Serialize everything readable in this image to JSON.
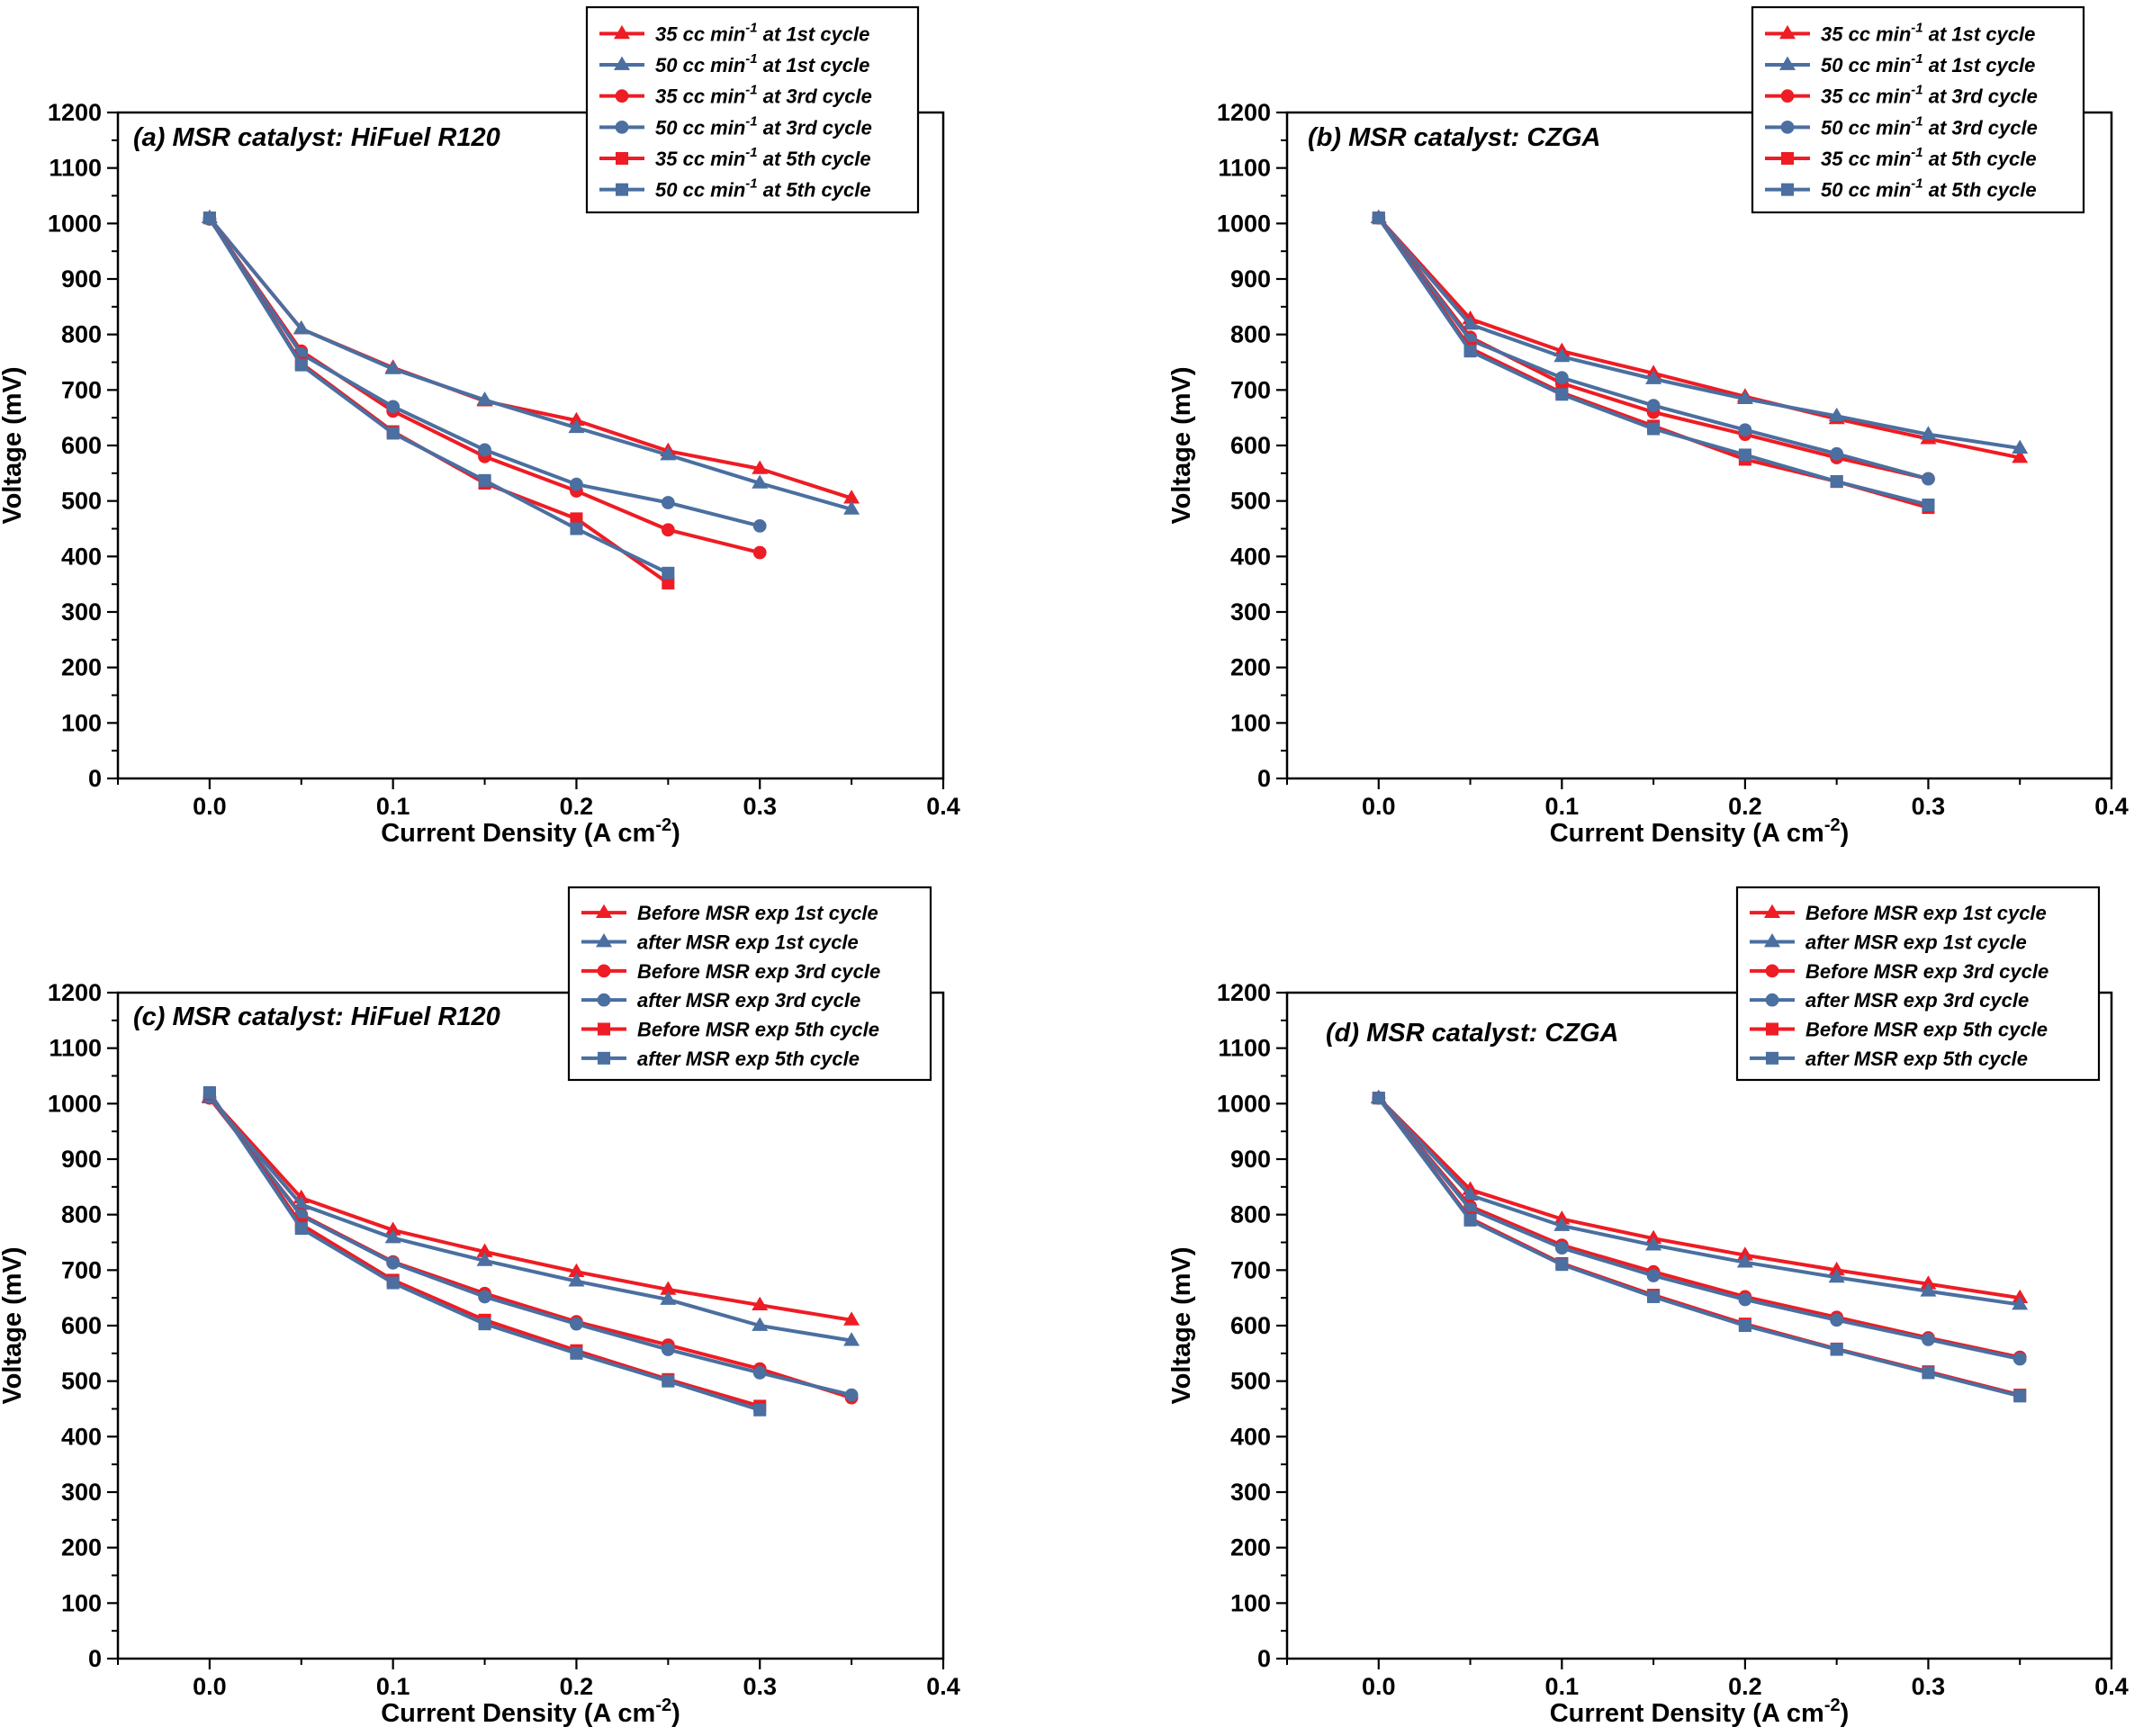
{
  "figure": {
    "colors": {
      "red": "#EE1C24",
      "blue": "#4A6FA0",
      "axis": "#000000"
    }
  },
  "chart_data": [
    {
      "id": "a",
      "type": "line",
      "title": "(a)  MSR catalyst: HiFuel R120",
      "xlabel": "Current Density (A cm",
      "xlabel_sup": "-2",
      "xlabel_end": ")",
      "ylabel": "Voltage (mV)",
      "xlim": [
        -0.05,
        0.4
      ],
      "ylim": [
        0,
        1200
      ],
      "xticks": [
        0.0,
        0.1,
        0.2,
        0.3,
        0.4
      ],
      "xtick_labels": [
        "0.0",
        "0.1",
        "0.2",
        "0.3",
        "0.4"
      ],
      "yticks": [
        0,
        100,
        200,
        300,
        400,
        500,
        600,
        700,
        800,
        900,
        1000,
        1100,
        1200
      ],
      "ytick_labels": [
        "0",
        "100",
        "200",
        "300",
        "400",
        "500",
        "600",
        "700",
        "800",
        "900",
        "1000",
        "1100",
        "1200"
      ],
      "legend_position": "top-right",
      "series": [
        {
          "name": "35 cc min-1 at 1st cycle",
          "legend_pre": "35 cc min",
          "legend_sup": "-1",
          "legend_post": " at 1st cycle",
          "color": "#EE1C24",
          "marker": "triangle",
          "x": [
            0,
            0.05,
            0.1,
            0.15,
            0.2,
            0.25,
            0.3,
            0.35
          ],
          "y": [
            1010,
            810,
            740,
            680,
            645,
            590,
            558,
            505
          ]
        },
        {
          "name": "50 cc min-1 at 1st cycle",
          "legend_pre": "50 cc min",
          "legend_sup": "-1",
          "legend_post": " at 1st cycle",
          "color": "#4A6FA0",
          "marker": "triangle",
          "x": [
            0,
            0.05,
            0.1,
            0.15,
            0.2,
            0.25,
            0.3,
            0.35
          ],
          "y": [
            1010,
            810,
            738,
            682,
            632,
            583,
            532,
            485
          ]
        },
        {
          "name": "35 cc min-1 at 3rd cycle",
          "legend_pre": "35 cc min",
          "legend_sup": "-1",
          "legend_post": " at 3rd cycle",
          "color": "#EE1C24",
          "marker": "circle",
          "x": [
            0,
            0.05,
            0.1,
            0.15,
            0.2,
            0.25,
            0.3
          ],
          "y": [
            1008,
            770,
            662,
            580,
            518,
            448,
            407
          ]
        },
        {
          "name": "50 cc min-1 at 3rd cycle",
          "legend_pre": "50 cc min",
          "legend_sup": "-1",
          "legend_post": " at 3rd cycle",
          "color": "#4A6FA0",
          "marker": "circle",
          "x": [
            0,
            0.05,
            0.1,
            0.15,
            0.2,
            0.25,
            0.3
          ],
          "y": [
            1008,
            765,
            670,
            592,
            530,
            497,
            455
          ]
        },
        {
          "name": "35 cc min-1 at 5th cycle",
          "legend_pre": "35 cc min",
          "legend_sup": "-1",
          "legend_post": " at 5th cycle",
          "color": "#EE1C24",
          "marker": "square",
          "x": [
            0,
            0.05,
            0.1,
            0.15,
            0.2,
            0.25
          ],
          "y": [
            1010,
            748,
            625,
            532,
            468,
            352
          ]
        },
        {
          "name": "50 cc min-1 at 5th cycle",
          "legend_pre": "50 cc min",
          "legend_sup": "-1",
          "legend_post": " at 5th cycle",
          "color": "#4A6FA0",
          "marker": "square",
          "x": [
            0,
            0.05,
            0.1,
            0.15,
            0.2,
            0.25
          ],
          "y": [
            1010,
            745,
            622,
            537,
            450,
            370
          ]
        }
      ]
    },
    {
      "id": "b",
      "type": "line",
      "title": "(b)  MSR catalyst: CZGA",
      "xlabel": "Current Density (A cm",
      "xlabel_sup": "-2",
      "xlabel_end": ")",
      "ylabel": "Voltage (mV)",
      "xlim": [
        -0.05,
        0.4
      ],
      "ylim": [
        0,
        1200
      ],
      "xticks": [
        0.0,
        0.1,
        0.2,
        0.3,
        0.4
      ],
      "xtick_labels": [
        "0.0",
        "0.1",
        "0.2",
        "0.3",
        "0.4"
      ],
      "yticks": [
        0,
        100,
        200,
        300,
        400,
        500,
        600,
        700,
        800,
        900,
        1000,
        1100,
        1200
      ],
      "ytick_labels": [
        "0",
        "100",
        "200",
        "300",
        "400",
        "500",
        "600",
        "700",
        "800",
        "900",
        "1000",
        "1100",
        "1200"
      ],
      "legend_position": "top-right",
      "series": [
        {
          "name": "35 cc min-1 at 1st cycle",
          "legend_pre": "35 cc min",
          "legend_sup": "-1",
          "legend_post": " at 1st cycle",
          "color": "#EE1C24",
          "marker": "triangle",
          "x": [
            0,
            0.05,
            0.1,
            0.15,
            0.2,
            0.25,
            0.3,
            0.35
          ],
          "y": [
            1010,
            828,
            770,
            730,
            688,
            648,
            612,
            578
          ]
        },
        {
          "name": "50 cc min-1 at 1st cycle",
          "legend_pre": "50 cc min",
          "legend_sup": "-1",
          "legend_post": " at 1st cycle",
          "color": "#4A6FA0",
          "marker": "triangle",
          "x": [
            0,
            0.05,
            0.1,
            0.15,
            0.2,
            0.25,
            0.3,
            0.35
          ],
          "y": [
            1010,
            818,
            760,
            720,
            684,
            653,
            620,
            595
          ]
        },
        {
          "name": "35 cc min-1 at 3rd cycle",
          "legend_pre": "35 cc min",
          "legend_sup": "-1",
          "legend_post": " at 3rd cycle",
          "color": "#EE1C24",
          "marker": "circle",
          "x": [
            0,
            0.05,
            0.1,
            0.15,
            0.2,
            0.25,
            0.3
          ],
          "y": [
            1010,
            795,
            712,
            660,
            620,
            578,
            540
          ]
        },
        {
          "name": "50 cc min-1 at 3rd cycle",
          "legend_pre": "50 cc min",
          "legend_sup": "-1",
          "legend_post": " at 3rd cycle",
          "color": "#4A6FA0",
          "marker": "circle",
          "x": [
            0,
            0.05,
            0.1,
            0.15,
            0.2,
            0.25,
            0.3
          ],
          "y": [
            1010,
            790,
            722,
            672,
            628,
            585,
            540
          ]
        },
        {
          "name": "35 cc min-1 at 5th cycle",
          "legend_pre": "35 cc min",
          "legend_sup": "-1",
          "legend_post": " at 5th cycle",
          "color": "#EE1C24",
          "marker": "square",
          "x": [
            0,
            0.05,
            0.1,
            0.15,
            0.2,
            0.25,
            0.3
          ],
          "y": [
            1010,
            775,
            695,
            635,
            575,
            535,
            488
          ]
        },
        {
          "name": "50 cc min-1 at 5th cycle",
          "legend_pre": "50 cc min",
          "legend_sup": "-1",
          "legend_post": " at 5th cycle",
          "color": "#4A6FA0",
          "marker": "square",
          "x": [
            0,
            0.05,
            0.1,
            0.15,
            0.2,
            0.25,
            0.3
          ],
          "y": [
            1010,
            770,
            692,
            630,
            583,
            535,
            493
          ]
        }
      ]
    },
    {
      "id": "c",
      "type": "line",
      "title": "(c)  MSR catalyst: HiFuel R120",
      "xlabel": "Current Density (A cm",
      "xlabel_sup": "-2",
      "xlabel_end": ")",
      "ylabel": "Voltage (mV)",
      "xlim": [
        -0.05,
        0.4
      ],
      "ylim": [
        0,
        1200
      ],
      "xticks": [
        0.0,
        0.1,
        0.2,
        0.3,
        0.4
      ],
      "xtick_labels": [
        "0.0",
        "0.1",
        "0.2",
        "0.3",
        "0.4"
      ],
      "yticks": [
        0,
        100,
        200,
        300,
        400,
        500,
        600,
        700,
        800,
        900,
        1000,
        1100,
        1200
      ],
      "ytick_labels": [
        "0",
        "100",
        "200",
        "300",
        "400",
        "500",
        "600",
        "700",
        "800",
        "900",
        "1000",
        "1100",
        "1200"
      ],
      "legend_position": "top-right",
      "series": [
        {
          "name": "Before MSR exp 1st cycle",
          "legend_pre": "Before MSR exp 1st cycle",
          "legend_sup": "",
          "legend_post": "",
          "color": "#EE1C24",
          "marker": "triangle",
          "x": [
            0,
            0.05,
            0.1,
            0.15,
            0.2,
            0.25,
            0.3,
            0.35
          ],
          "y": [
            1012,
            830,
            772,
            733,
            697,
            665,
            637,
            610
          ]
        },
        {
          "name": "after MSR exp 1st cycle",
          "legend_pre": "after MSR exp 1st cycle",
          "legend_sup": "",
          "legend_post": "",
          "color": "#4A6FA0",
          "marker": "triangle",
          "x": [
            0,
            0.05,
            0.1,
            0.15,
            0.2,
            0.25,
            0.3,
            0.35
          ],
          "y": [
            1010,
            818,
            758,
            717,
            680,
            647,
            600,
            573
          ]
        },
        {
          "name": "Before MSR exp 3rd cycle",
          "legend_pre": "Before MSR exp 3rd cycle",
          "legend_sup": "",
          "legend_post": "",
          "color": "#EE1C24",
          "marker": "circle",
          "x": [
            0,
            0.05,
            0.1,
            0.15,
            0.2,
            0.25,
            0.3,
            0.35
          ],
          "y": [
            1010,
            800,
            715,
            658,
            607,
            565,
            522,
            470
          ]
        },
        {
          "name": "after MSR exp 3rd cycle",
          "legend_pre": "after MSR exp 3rd cycle",
          "legend_sup": "",
          "legend_post": "",
          "color": "#4A6FA0",
          "marker": "circle",
          "x": [
            0,
            0.05,
            0.1,
            0.15,
            0.2,
            0.25,
            0.3,
            0.35
          ],
          "y": [
            1012,
            798,
            713,
            652,
            603,
            557,
            515,
            475
          ]
        },
        {
          "name": "Before MSR exp 5th cycle",
          "legend_pre": "Before MSR exp 5th cycle",
          "legend_sup": "",
          "legend_post": "",
          "color": "#EE1C24",
          "marker": "square",
          "x": [
            0,
            0.05,
            0.1,
            0.15,
            0.2,
            0.25,
            0.3
          ],
          "y": [
            1018,
            782,
            682,
            610,
            555,
            503,
            455
          ]
        },
        {
          "name": "after MSR exp 5th cycle",
          "legend_pre": "after MSR exp 5th cycle",
          "legend_sup": "",
          "legend_post": "",
          "color": "#4A6FA0",
          "marker": "square",
          "x": [
            0,
            0.05,
            0.1,
            0.15,
            0.2,
            0.25,
            0.3
          ],
          "y": [
            1020,
            775,
            677,
            603,
            550,
            500,
            448
          ]
        }
      ]
    },
    {
      "id": "d",
      "type": "line",
      "title": "(d) MSR catalyst: CZGA",
      "xlabel": "Current Density (A cm",
      "xlabel_sup": "-2",
      "xlabel_end": ")",
      "ylabel": "Voltage (mV)",
      "xlim": [
        -0.05,
        0.4
      ],
      "ylim": [
        0,
        1200
      ],
      "xticks": [
        0.0,
        0.1,
        0.2,
        0.3,
        0.4
      ],
      "xtick_labels": [
        "0.0",
        "0.1",
        "0.2",
        "0.3",
        "0.4"
      ],
      "yticks": [
        0,
        100,
        200,
        300,
        400,
        500,
        600,
        700,
        800,
        900,
        1000,
        1100,
        1200
      ],
      "ytick_labels": [
        "0",
        "100",
        "200",
        "300",
        "400",
        "500",
        "600",
        "700",
        "800",
        "900",
        "1000",
        "1100",
        "1200"
      ],
      "legend_position": "top-right",
      "series": [
        {
          "name": "Before MSR exp 1st cycle",
          "legend_pre": "Before MSR exp 1st cycle",
          "legend_sup": "",
          "legend_post": "",
          "color": "#EE1C24",
          "marker": "triangle",
          "x": [
            0,
            0.05,
            0.1,
            0.15,
            0.2,
            0.25,
            0.3,
            0.35
          ],
          "y": [
            1010,
            845,
            792,
            757,
            727,
            700,
            675,
            650
          ]
        },
        {
          "name": "after MSR exp 1st cycle",
          "legend_pre": "after MSR exp 1st cycle",
          "legend_sup": "",
          "legend_post": "",
          "color": "#4A6FA0",
          "marker": "triangle",
          "x": [
            0,
            0.05,
            0.1,
            0.15,
            0.2,
            0.25,
            0.3,
            0.35
          ],
          "y": [
            1010,
            835,
            780,
            745,
            714,
            687,
            662,
            638
          ]
        },
        {
          "name": "Before MSR exp 3rd cycle",
          "legend_pre": "Before MSR exp 3rd cycle",
          "legend_sup": "",
          "legend_post": "",
          "color": "#EE1C24",
          "marker": "circle",
          "x": [
            0,
            0.05,
            0.1,
            0.15,
            0.2,
            0.25,
            0.3,
            0.35
          ],
          "y": [
            1010,
            815,
            745,
            697,
            652,
            615,
            578,
            543
          ]
        },
        {
          "name": "after MSR exp 3rd cycle",
          "legend_pre": "after MSR exp 3rd cycle",
          "legend_sup": "",
          "legend_post": "",
          "color": "#4A6FA0",
          "marker": "circle",
          "x": [
            0,
            0.05,
            0.1,
            0.15,
            0.2,
            0.25,
            0.3,
            0.35
          ],
          "y": [
            1010,
            810,
            740,
            690,
            647,
            610,
            575,
            540
          ]
        },
        {
          "name": "Before MSR exp 5th cycle",
          "legend_pre": "Before MSR exp 5th cycle",
          "legend_sup": "",
          "legend_post": "",
          "color": "#EE1C24",
          "marker": "square",
          "x": [
            0,
            0.05,
            0.1,
            0.15,
            0.2,
            0.25,
            0.3,
            0.35
          ],
          "y": [
            1010,
            793,
            712,
            655,
            603,
            558,
            517,
            475
          ]
        },
        {
          "name": "after MSR exp 5th cycle",
          "legend_pre": "after MSR exp 5th cycle",
          "legend_sup": "",
          "legend_post": "",
          "color": "#4A6FA0",
          "marker": "square",
          "x": [
            0,
            0.05,
            0.1,
            0.15,
            0.2,
            0.25,
            0.3,
            0.35
          ],
          "y": [
            1010,
            790,
            710,
            652,
            600,
            557,
            515,
            473
          ]
        }
      ]
    }
  ]
}
